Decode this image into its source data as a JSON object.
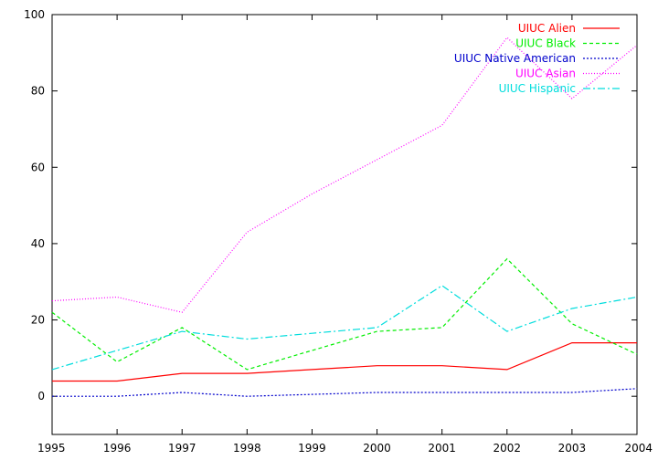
{
  "chart_data": {
    "type": "line",
    "title": "",
    "xlabel": "",
    "ylabel": "",
    "x": [
      1995,
      1996,
      1997,
      1998,
      1999,
      2000,
      2001,
      2002,
      2003,
      2004
    ],
    "xlim": [
      1995,
      2004
    ],
    "ylim": [
      -10,
      100
    ],
    "x_ticks": [
      "1995",
      "1996",
      "1997",
      "1998",
      "1999",
      "2000",
      "2001",
      "2002",
      "2003",
      "2004"
    ],
    "y_ticks": [
      "0",
      "20",
      "40",
      "60",
      "80",
      "100"
    ],
    "y_tick_values": [
      0,
      20,
      40,
      60,
      80,
      100
    ],
    "grid": false,
    "legend_position": "top-right",
    "series": [
      {
        "name": "UIUC Alien",
        "color": "#ff0000",
        "dash": "solid",
        "values": [
          4,
          4,
          6,
          6,
          7,
          8,
          8,
          7,
          14,
          14
        ]
      },
      {
        "name": "UIUC Black",
        "color": "#00ee00",
        "dash": "dashed",
        "values": [
          22,
          9,
          18,
          7,
          12,
          17,
          18,
          36,
          19,
          11
        ]
      },
      {
        "name": "UIUC Native American",
        "color": "#0000cc",
        "dash": "dotted",
        "values": [
          0,
          0,
          1,
          0,
          0.5,
          1,
          1,
          1,
          1,
          2
        ]
      },
      {
        "name": "UIUC Asian",
        "color": "#ff00ff",
        "dash": "fine-dotted",
        "values": [
          25,
          26,
          22,
          43,
          53,
          62,
          71,
          94,
          78,
          92
        ]
      },
      {
        "name": "UIUC Hispanic",
        "color": "#00dddd",
        "dash": "dash-dot",
        "values": [
          7,
          12,
          17,
          15,
          16.5,
          18,
          29,
          17,
          23,
          26
        ]
      }
    ]
  }
}
